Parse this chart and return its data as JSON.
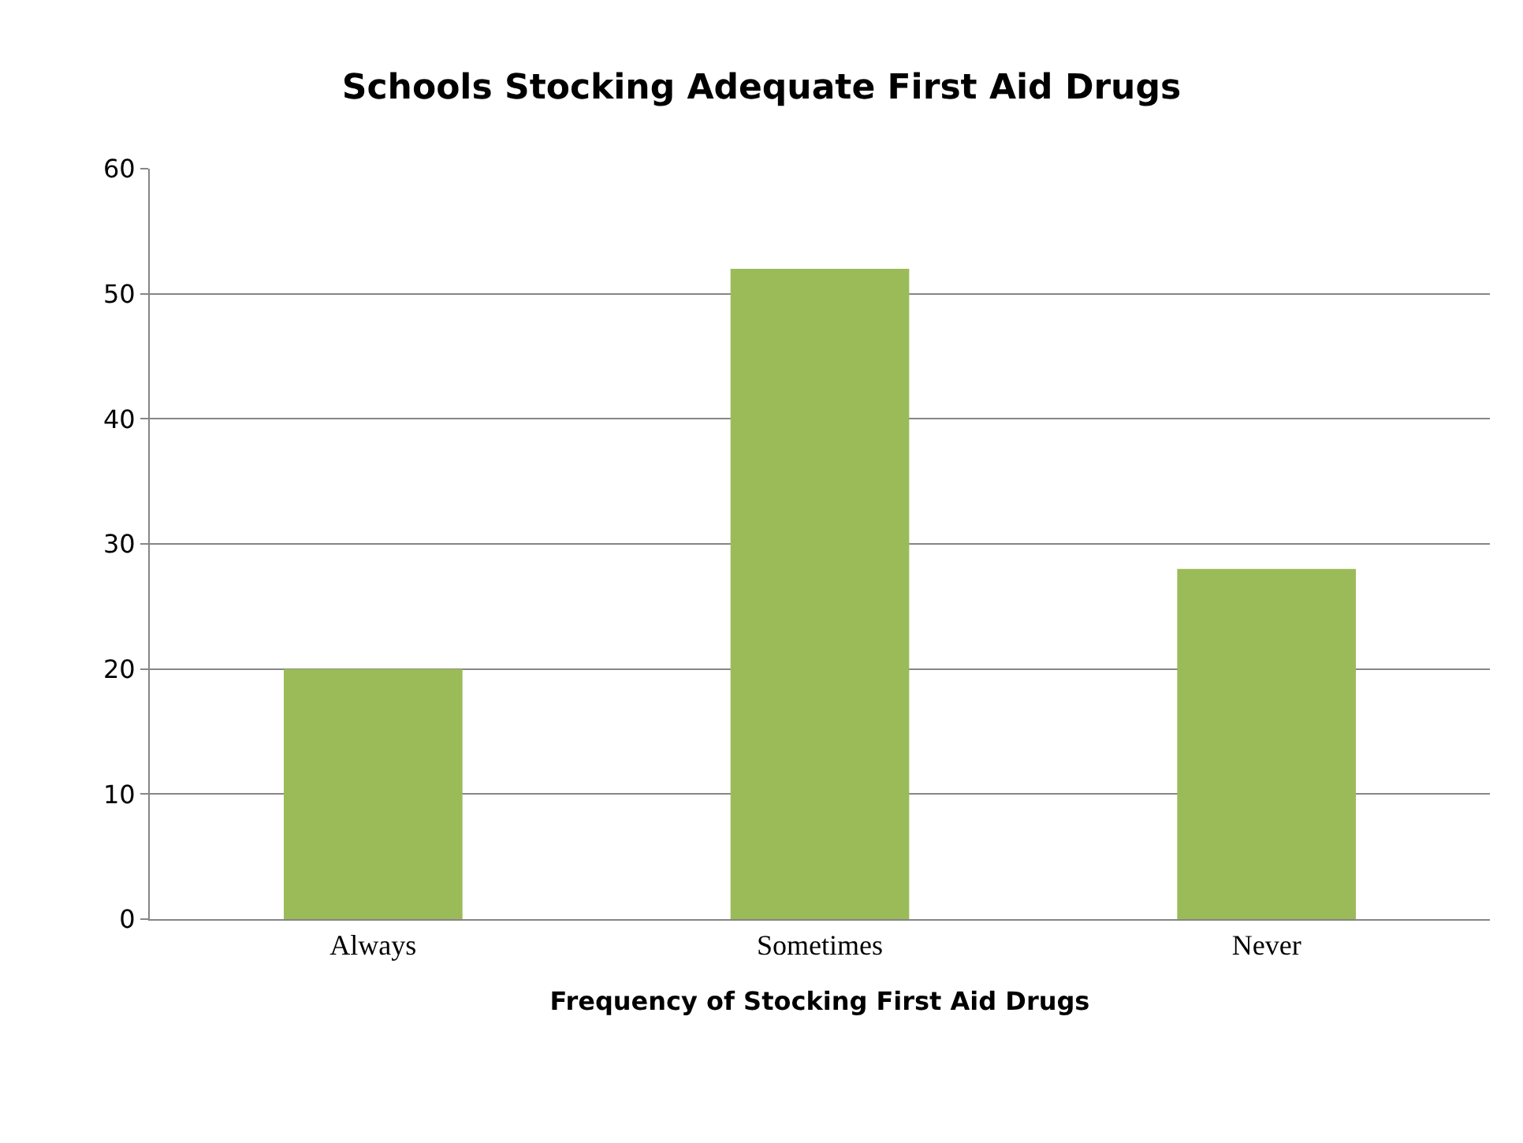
{
  "chart_data": {
    "type": "bar",
    "title": "Schools Stocking Adequate First Aid Drugs",
    "xlabel": "Frequency of Stocking First Aid Drugs",
    "categories": [
      "Always",
      "Sometimes",
      "Never"
    ],
    "values": [
      20,
      52,
      28
    ],
    "color": "#9bbb59",
    "ylim": [
      0,
      60
    ],
    "yticks": [
      0,
      10,
      20,
      30,
      40,
      50,
      60
    ],
    "grid": "y"
  }
}
